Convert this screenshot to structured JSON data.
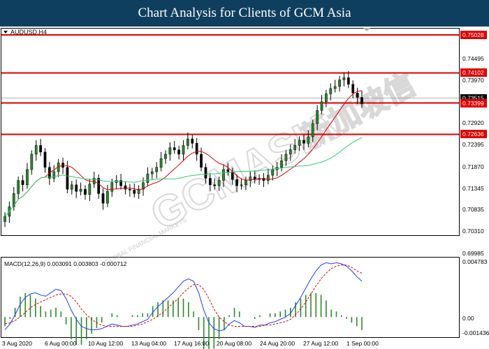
{
  "header": {
    "title": "Chart Analysis for Clients of GCM Asia"
  },
  "colors": {
    "header_bg": "#0f3f5f",
    "bull": "#2a8a2a",
    "bear": "#000000",
    "ma_red": "#e00000",
    "ma_green": "#2ecc71",
    "level_line": "#e00000",
    "macd_line": "#1e3cff",
    "signal_line": "#e00000",
    "histogram": "#2a8a2a"
  },
  "watermark": {
    "brand": "GCMASIA",
    "local": "新加坡信",
    "sub": "GLOBAL FINANCIAL MARKETS"
  },
  "chart_data": [
    {
      "type": "candlestick",
      "symbol_label": "AUDUSD,H4",
      "ylim": [
        0.69985,
        0.75028
      ],
      "y_ticks": [
        "0.74495",
        "0.73970",
        "0.72920",
        "0.72395",
        "0.71870",
        "0.71345",
        "0.70835",
        "0.70310",
        "0.69985"
      ],
      "current_price": "0.73515",
      "x_tick_labels": [
        "3 Aug 2020",
        "6 Aug 00:00",
        "10 Aug 12:00",
        "13 Aug 04:00",
        "17 Aug 16:00",
        "20 Aug 08:00",
        "24 Aug 20:00",
        "27 Aug 12:00",
        "1 Sep 00:00"
      ],
      "levels": [
        {
          "label": "0.75028",
          "value": 0.75028
        },
        {
          "label": "0.74102",
          "value": 0.74102
        },
        {
          "label": "0.73399",
          "value": 0.73399
        },
        {
          "label": "0.72636",
          "value": 0.72636
        }
      ],
      "closes": [
        0.7088,
        0.711,
        0.714,
        0.717,
        0.716,
        0.7195,
        0.723,
        0.725,
        0.7235,
        0.72,
        0.7175,
        0.719,
        0.721,
        0.72,
        0.715,
        0.716,
        0.7145,
        0.715,
        0.7138,
        0.7162,
        0.7175,
        0.714,
        0.7118,
        0.7145,
        0.7165,
        0.717,
        0.7158,
        0.715,
        0.7148,
        0.714,
        0.715,
        0.7165,
        0.7185,
        0.719,
        0.72,
        0.722,
        0.723,
        0.7245,
        0.724,
        0.723,
        0.725,
        0.7265,
        0.7255,
        0.723,
        0.72,
        0.7175,
        0.716,
        0.7158,
        0.717,
        0.7195,
        0.719,
        0.7172,
        0.7158,
        0.716,
        0.717,
        0.7178,
        0.7172,
        0.7175,
        0.717,
        0.7182,
        0.7195,
        0.72,
        0.7215,
        0.723,
        0.724,
        0.725,
        0.7262,
        0.7255,
        0.727,
        0.73,
        0.733,
        0.735,
        0.7368,
        0.738,
        0.7385,
        0.74,
        0.7405,
        0.739,
        0.737,
        0.736,
        0.7345
      ]
    },
    {
      "type": "macd",
      "label": "MACD(12,26,9) 0.003091 0.003803 -0.000712",
      "ylim": [
        -0.001436,
        0.004783
      ],
      "y_ticks": [
        "0.004783",
        "0.00",
        "-0.001436"
      ],
      "macd": [
        -0.0011,
        -0.0006,
        0.0002,
        0.0011,
        0.0017,
        0.002,
        0.0021,
        0.0019,
        0.0018,
        0.0021,
        0.0024,
        0.0023,
        0.0016,
        0.0006,
        -0.0002,
        -0.0008,
        -0.001,
        -0.0011,
        -0.0011,
        -0.001,
        -0.0008,
        -0.0006,
        -0.0007,
        -0.0008,
        -0.0008,
        -0.0007,
        -0.0006,
        -0.0004,
        -0.0002,
        0.0004,
        0.0009,
        0.0013,
        0.0017,
        0.0021,
        0.0026,
        0.0031,
        0.0033,
        0.0031,
        0.0021,
        0.0006,
        -0.0005,
        -0.001,
        -0.0012,
        -0.0011,
        -0.0006,
        -0.0003,
        -0.0005,
        -0.0008,
        -0.0008,
        -0.0009,
        -0.0007,
        -0.0007,
        -0.0005,
        -0.0004,
        -0.0002,
        0.0,
        0.0003,
        0.001,
        0.0017,
        0.0025,
        0.0033,
        0.004,
        0.0045,
        0.0047,
        0.0046,
        0.0047,
        0.0046,
        0.0044,
        0.004,
        0.0035,
        0.0031
      ],
      "signal": [
        -0.0006,
        -0.0005,
        -0.0003,
        0.0,
        0.0004,
        0.0008,
        0.0011,
        0.0013,
        0.0015,
        0.0017,
        0.0019,
        0.002,
        0.002,
        0.0018,
        0.0013,
        0.0007,
        0.0002,
        -0.0002,
        -0.0005,
        -0.0007,
        -0.0008,
        -0.0008,
        -0.0008,
        -0.0008,
        -0.0008,
        -0.0008,
        -0.0007,
        -0.0006,
        -0.0004,
        -0.0002,
        0.0001,
        0.0004,
        0.0008,
        0.0012,
        0.0016,
        0.0021,
        0.0025,
        0.0028,
        0.0028,
        0.0024,
        0.0016,
        0.0007,
        0.0,
        -0.0004,
        -0.0007,
        -0.0008,
        -0.0008,
        -0.0008,
        -0.0008,
        -0.0008,
        -0.0008,
        -0.0007,
        -0.0007,
        -0.0006,
        -0.0005,
        -0.0004,
        -0.0002,
        0.0002,
        0.0007,
        0.0013,
        0.002,
        0.0027,
        0.0033,
        0.0038,
        0.0042,
        0.0044,
        0.0045,
        0.0045,
        0.0043,
        0.004,
        0.0038
      ],
      "histogram_overlay": "MACD minus signal"
    }
  ]
}
